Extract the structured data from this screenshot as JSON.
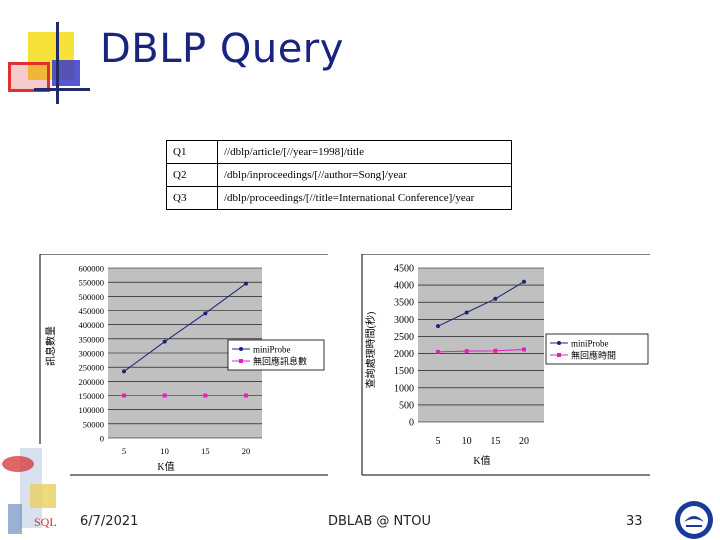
{
  "slide": {
    "title": "DBLP Query",
    "footer": {
      "date": "6/7/2021",
      "center": "DBLAB @ NTOU",
      "page": "33"
    },
    "logo_text": "SQL"
  },
  "queries": [
    {
      "id": "Q1",
      "path": "//dblp/article/[//year=1998]/title"
    },
    {
      "id": "Q2",
      "path": "/dblp/inproceedings/[//author=Song]/year"
    },
    {
      "id": "Q3",
      "path": "/dblp/proceedings/[//title=International Conference]/year"
    }
  ],
  "colors": {
    "title": "#1a237e",
    "series_a": "#1a237e",
    "series_b": "#e020c0"
  },
  "chart_data": [
    {
      "type": "line",
      "title": "",
      "xlabel": "K值",
      "ylabel": "訊息數量",
      "x": [
        5,
        10,
        15,
        20
      ],
      "ylim": [
        0,
        600000
      ],
      "yticks": [
        "600000",
        "550000",
        "500000",
        "450000",
        "400000",
        "350000",
        "300000",
        "250000",
        "200000",
        "150000",
        "100000",
        "50000",
        "0"
      ],
      "xticks": [
        "5",
        "10",
        "15",
        "20"
      ],
      "grid": true,
      "legend": "right",
      "series": [
        {
          "name": "miniProbe",
          "values": [
            235000,
            340000,
            440000,
            545000
          ]
        },
        {
          "name": "無回應訊息數",
          "values": [
            150000,
            150000,
            150000,
            150000
          ]
        }
      ]
    },
    {
      "type": "line",
      "title": "",
      "xlabel": "K值",
      "ylabel": "查詢處理時間(秒)",
      "x": [
        5,
        10,
        15,
        20
      ],
      "ylim": [
        0,
        4500
      ],
      "yticks": [
        "4500",
        "4000",
        "3500",
        "3000",
        "2500",
        "2000",
        "1500",
        "1000",
        "500",
        "0"
      ],
      "xticks": [
        "5",
        "10",
        "15",
        "20"
      ],
      "grid": true,
      "legend": "right",
      "series": [
        {
          "name": "miniProbe",
          "values": [
            2800,
            3200,
            3600,
            4100
          ]
        },
        {
          "name": "無回應時間",
          "values": [
            2050,
            2070,
            2080,
            2120
          ]
        }
      ]
    }
  ]
}
